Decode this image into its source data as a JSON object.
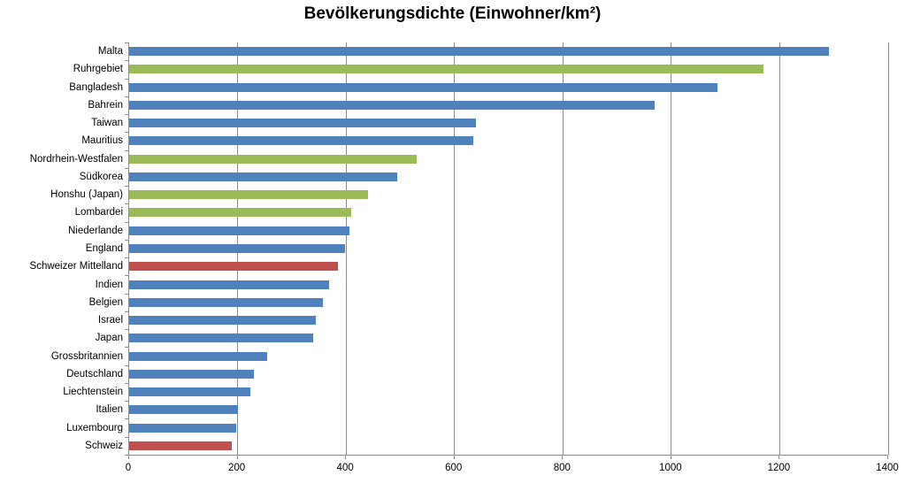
{
  "chart_data": {
    "type": "bar",
    "orientation": "horizontal",
    "title": "Bevölkerungsdichte (Einwohner/km²)",
    "xlabel": "",
    "ylabel": "",
    "legend": false,
    "grid": true,
    "x_axis": {
      "min": 0,
      "max": 1400,
      "tick_step": 200,
      "ticks": [
        0,
        200,
        400,
        600,
        800,
        1000,
        1200,
        1400
      ]
    },
    "categories": [
      "Malta",
      "Ruhrgebiet",
      "Bangladesh",
      "Bahrein",
      "Taiwan",
      "Mauritius",
      "Nordrhein-Westfalen",
      "Südkorea",
      "Honshu (Japan)",
      "Lombardei",
      "Niederlande",
      "England",
      "Schweizer Mittelland",
      "Indien",
      "Belgien",
      "Israel",
      "Japan",
      "Grossbritannien",
      "Deutschland",
      "Liechtenstein",
      "Italien",
      "Luxembourg",
      "Schweiz"
    ],
    "values": [
      1290,
      1170,
      1085,
      970,
      640,
      635,
      530,
      495,
      440,
      410,
      406,
      398,
      385,
      368,
      357,
      345,
      340,
      255,
      230,
      224,
      200,
      197,
      190
    ],
    "bar_colors": [
      "blue",
      "green",
      "blue",
      "blue",
      "blue",
      "blue",
      "green",
      "blue",
      "green",
      "green",
      "blue",
      "blue",
      "red",
      "blue",
      "blue",
      "blue",
      "blue",
      "blue",
      "blue",
      "blue",
      "blue",
      "blue",
      "red"
    ],
    "palette": {
      "blue": "#4F81BD",
      "green": "#9BBB59",
      "red": "#C0504D"
    },
    "axis_color": "#8C8C8C",
    "gridline_color": "#8C8C8C",
    "text_color": "#000000",
    "background_color": "#FFFFFF"
  }
}
